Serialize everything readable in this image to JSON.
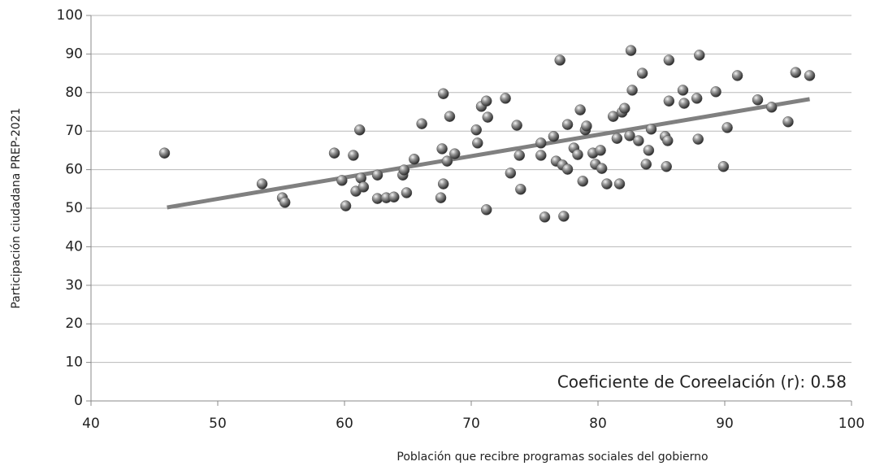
{
  "chart_data": {
    "type": "scatter",
    "x_label": "Población que recibre programas sociales del gobierno",
    "y_label": "Participación ciudadana PREP-2021",
    "annotation": "Coeficiente de Coreelación (r): 0.58",
    "color": "#555555",
    "x": [
      45.8,
      53.5,
      55.1,
      55.3,
      59.2,
      59.8,
      60.1,
      60.7,
      60.9,
      61.2,
      61.3,
      61.5,
      62.6,
      62.6,
      63.3,
      63.9,
      64.6,
      64.7,
      64.9,
      65.5,
      66.1,
      67.6,
      67.7,
      67.8,
      67.8,
      68.1,
      68.3,
      68.7,
      70.4,
      70.5,
      70.8,
      71.2,
      71.2,
      71.3,
      72.7,
      73.1,
      73.6,
      73.8,
      73.9,
      75.5,
      75.5,
      75.8,
      76.5,
      76.7,
      77.0,
      77.2,
      77.3,
      77.6,
      77.6,
      78.1,
      78.4,
      78.6,
      78.8,
      79.0,
      79.1,
      79.6,
      79.8,
      80.2,
      80.3,
      80.7,
      81.2,
      81.5,
      81.7,
      81.9,
      82.1,
      82.5,
      82.6,
      82.7,
      83.2,
      83.5,
      83.8,
      84.0,
      84.2,
      85.3,
      85.4,
      85.5,
      85.6,
      85.6,
      86.7,
      86.8,
      87.8,
      87.9,
      88.0,
      89.3,
      89.9,
      90.2,
      91.0,
      92.6,
      93.7,
      95.0,
      95.6,
      96.7
    ],
    "values": [
      64.3,
      56.3,
      52.7,
      51.5,
      64.3,
      57.2,
      50.6,
      63.7,
      54.4,
      70.3,
      57.8,
      55.5,
      58.6,
      52.5,
      52.7,
      52.9,
      58.6,
      59.9,
      54.0,
      62.7,
      71.9,
      52.7,
      65.4,
      79.7,
      56.3,
      62.2,
      73.8,
      64.1,
      70.3,
      66.9,
      76.4,
      77.8,
      49.6,
      73.6,
      78.5,
      59.1,
      71.5,
      63.7,
      54.9,
      66.9,
      63.7,
      47.7,
      68.6,
      62.2,
      88.4,
      61.2,
      47.9,
      71.7,
      60.1,
      65.6,
      63.9,
      75.5,
      57.0,
      70.3,
      71.3,
      64.3,
      61.4,
      65.0,
      60.3,
      56.3,
      73.8,
      68.1,
      56.3,
      74.9,
      75.9,
      68.8,
      90.9,
      80.6,
      67.5,
      85.0,
      61.4,
      65.0,
      70.5,
      68.6,
      60.8,
      67.5,
      77.8,
      88.4,
      80.6,
      77.2,
      78.5,
      67.9,
      89.7,
      80.2,
      60.8,
      70.9,
      84.4,
      78.1,
      76.2,
      72.4,
      85.2,
      84.4
    ],
    "trendline": {
      "x": [
        46.0,
        96.7
      ],
      "y": [
        50.2,
        78.3
      ],
      "color": "#808080"
    },
    "xlim": [
      40,
      100
    ],
    "xticks": [
      40,
      50,
      60,
      70,
      80,
      90,
      100
    ],
    "ylim": [
      0,
      100
    ],
    "yticks": [
      0,
      10,
      20,
      30,
      40,
      50,
      60,
      70,
      80,
      90,
      100
    ],
    "grid": true
  }
}
